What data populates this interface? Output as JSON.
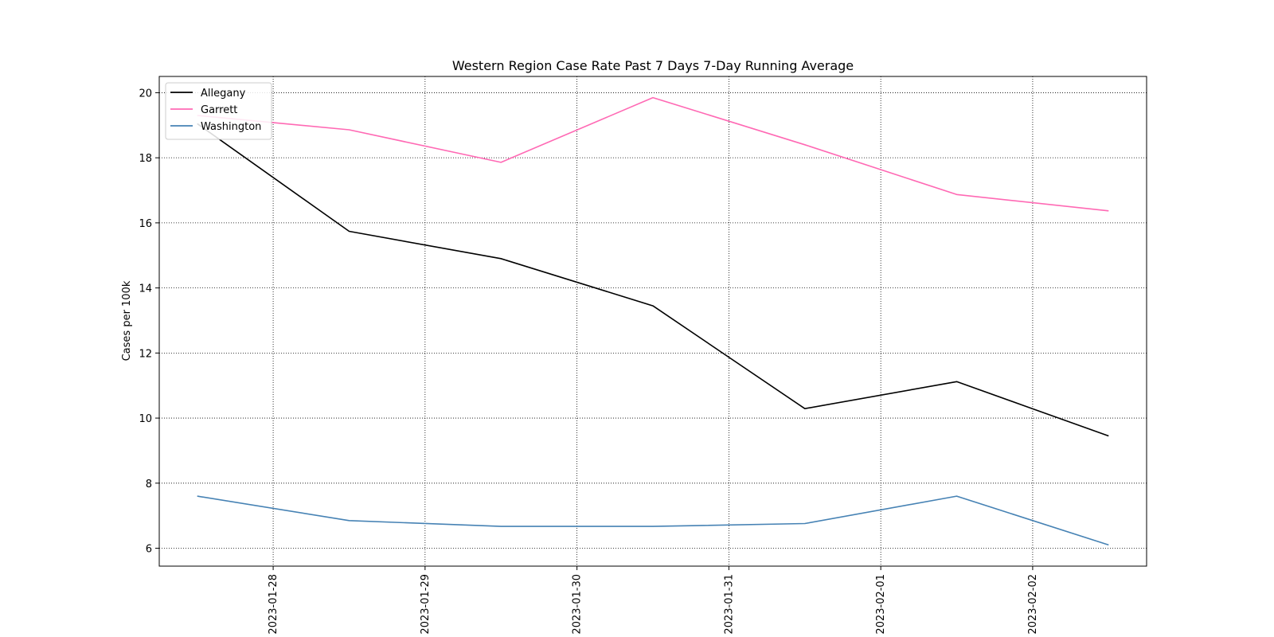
{
  "chart_data": {
    "type": "line",
    "title": "Western Region Case Rate  Past 7 Days 7-Day Running Average",
    "xlabel": "",
    "ylabel": "Cases per 100k",
    "x_axis_type": "date",
    "x": [
      "2023-01-27 12:00",
      "2023-01-28 12:00",
      "2023-01-29 12:00",
      "2023-01-30 12:00",
      "2023-01-31 12:00",
      "2023-02-01 12:00",
      "2023-02-02 12:00"
    ],
    "xlim": [
      "2023-01-27 06:00",
      "2023-02-02 18:00"
    ],
    "xticks": [
      "2023-01-28",
      "2023-01-29",
      "2023-01-30",
      "2023-01-31",
      "2023-02-01",
      "2023-02-02"
    ],
    "ylim": [
      5.45,
      20.5
    ],
    "yticks": [
      6,
      8,
      10,
      12,
      14,
      16,
      18,
      20
    ],
    "grid": true,
    "grid_style": "dotted",
    "legend_position": "top-left",
    "series": [
      {
        "name": "Allegany",
        "color": "#000000",
        "values": [
          19.05,
          15.74,
          14.9,
          13.45,
          10.29,
          11.12,
          9.45
        ]
      },
      {
        "name": "Garrett",
        "color": "#ff69b4",
        "values": [
          19.3,
          18.86,
          17.86,
          19.85,
          18.4,
          16.87,
          16.37
        ]
      },
      {
        "name": "Washington",
        "color": "#4682b4",
        "values": [
          7.6,
          6.85,
          6.67,
          6.67,
          6.76,
          7.6,
          6.1
        ]
      }
    ]
  }
}
